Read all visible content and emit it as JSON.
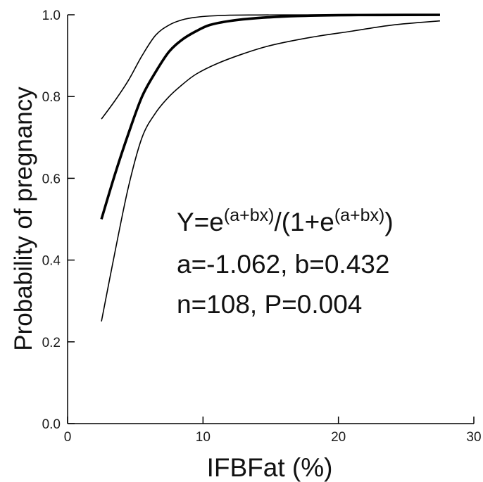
{
  "chart_data": {
    "type": "line",
    "title": "",
    "xlabel": "IFBFat (%)",
    "ylabel": "Probability of pregnancy",
    "xlim": [
      0,
      30
    ],
    "ylim": [
      0.0,
      1.0
    ],
    "x_ticks": [
      "0",
      "10",
      "20",
      "30"
    ],
    "y_ticks": [
      "0.0",
      "0.2",
      "0.4",
      "0.6",
      "0.8",
      "1.0"
    ],
    "grid": false,
    "legend": "none",
    "series": [
      {
        "role": "fit",
        "x": [
          2.5,
          3.5,
          4.5,
          5.5,
          6.5,
          7.5,
          8.5,
          9.5,
          10.5,
          12,
          14,
          17,
          20,
          23,
          27.5
        ],
        "values": [
          0.5,
          0.61,
          0.71,
          0.8,
          0.86,
          0.91,
          0.94,
          0.96,
          0.975,
          0.985,
          0.992,
          0.997,
          0.999,
          0.9995,
          0.9998
        ]
      },
      {
        "role": "upper-ci",
        "x": [
          2.5,
          3.5,
          4.5,
          5.5,
          6.5,
          7.5,
          8.5,
          9.5,
          10.5,
          12,
          14,
          17,
          20,
          23,
          27.5
        ],
        "values": [
          0.745,
          0.79,
          0.84,
          0.9,
          0.95,
          0.975,
          0.988,
          0.994,
          0.997,
          0.999,
          0.9995,
          0.9998,
          1.0,
          1.0,
          1.0
        ]
      },
      {
        "role": "lower-ci",
        "x": [
          2.5,
          3.5,
          4.5,
          5.5,
          6.5,
          7.5,
          8.5,
          9.5,
          11,
          13,
          15,
          18,
          21,
          24,
          27.5
        ],
        "values": [
          0.25,
          0.42,
          0.58,
          0.7,
          0.76,
          0.8,
          0.83,
          0.855,
          0.88,
          0.905,
          0.925,
          0.945,
          0.96,
          0.975,
          0.985
        ]
      }
    ],
    "colors": {
      "fit": "#000000",
      "ci": "#000000",
      "axis": "#000000"
    },
    "annotations": {
      "formula_base": "Y=e",
      "formula_exp1": "(a+bx)",
      "formula_mid": "/(1+e",
      "formula_exp2": "(a+bx)",
      "formula_end": ")",
      "params": "a=-1.062, b=0.432",
      "stats": "n=108, P=0.004"
    }
  }
}
